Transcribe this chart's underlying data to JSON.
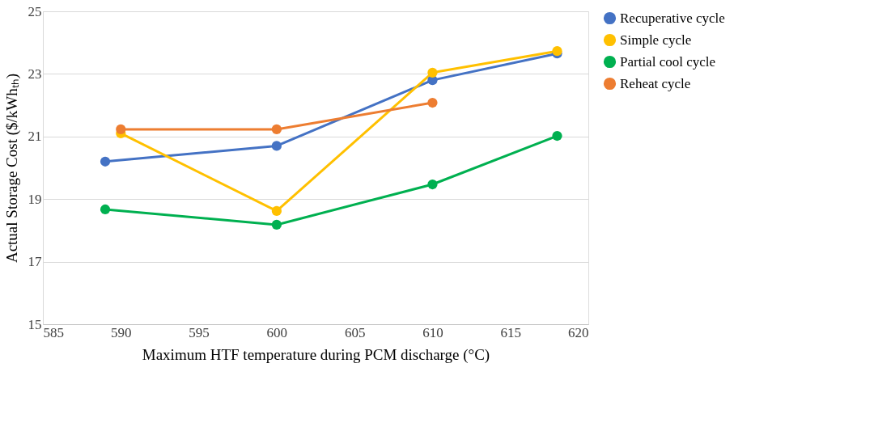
{
  "chart_data": {
    "type": "line",
    "xlabel": "Maximum HTF temperature during PCM discharge (°C)",
    "ylabel": "Actual Storage Cost ($/kWhₜₕ)",
    "xlim": [
      585,
      620
    ],
    "xticks": [
      585,
      590,
      595,
      600,
      605,
      610,
      615,
      620
    ],
    "ylim": [
      15,
      25
    ],
    "yticks": [
      15,
      17,
      19,
      21,
      23,
      25
    ],
    "grid": "y",
    "legend": "right",
    "marker": "circle",
    "line_style": "solid",
    "series": [
      {
        "name": "Recuperative cycle",
        "color": "#4472c4",
        "x": [
          589,
          600,
          610,
          618
        ],
        "values": [
          20.2,
          20.7,
          22.8,
          23.65
        ]
      },
      {
        "name": "Simple cycle",
        "color": "#ffc000",
        "x": [
          590,
          600,
          610,
          618
        ],
        "values": [
          21.1,
          18.62,
          23.04,
          23.73
        ]
      },
      {
        "name": "Partial cool cycle",
        "color": "#00b050",
        "x": [
          589,
          600,
          610,
          618
        ],
        "values": [
          18.67,
          18.18,
          19.47,
          21.02
        ]
      },
      {
        "name": "Reheat cycle",
        "color": "#ed7d31",
        "x": [
          590,
          600,
          610
        ],
        "values": [
          21.23,
          21.23,
          22.08
        ]
      }
    ]
  }
}
